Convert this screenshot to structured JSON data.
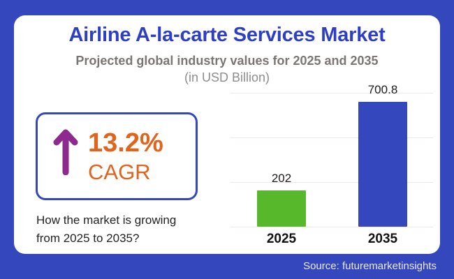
{
  "frame": {
    "background_color": "#3447bc",
    "card_color": "#ffffff"
  },
  "header": {
    "title": "Airline A-la-carte Services Market",
    "title_color": "#2d3fc7",
    "subtitle": "Projected global industry values for 2025 and 2035",
    "unit_note": "(in USD Billion)"
  },
  "cagr": {
    "value": "13.2%",
    "label": "CAGR",
    "text_color": "#e2631c",
    "arrow_color": "#8e2a8e",
    "border_color": "#3447bc"
  },
  "question": {
    "line1": "How the market is growing",
    "line2": "from 2025 to 2035?"
  },
  "chart_data": {
    "type": "bar",
    "categories": [
      "2025",
      "2035"
    ],
    "values": [
      202,
      700.8
    ],
    "value_labels": [
      "202",
      "700.8"
    ],
    "bar_colors": [
      "#57b82c",
      "#3447bc"
    ],
    "title": "Airline A-la-carte Services Market",
    "subtitle": "Projected global industry values for 2025 and 2035",
    "unit": "USD Billion",
    "xlabel": "",
    "ylabel": "",
    "ylim": [
      0,
      750
    ],
    "gridline_values": [
      0,
      250,
      500,
      750
    ],
    "grid": true,
    "legend_position": "none"
  },
  "footer": {
    "source": "Source: futuremarketinsights"
  }
}
